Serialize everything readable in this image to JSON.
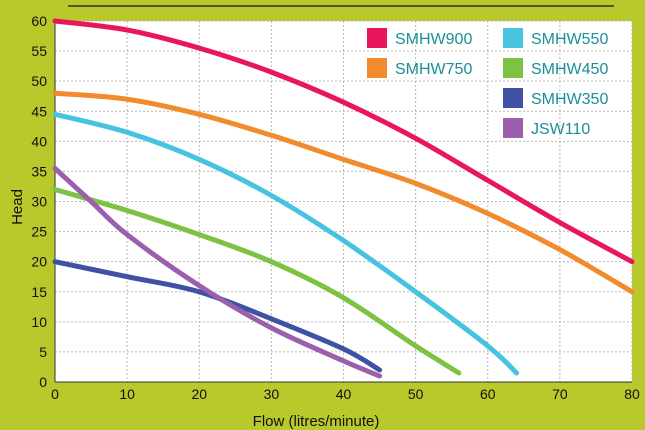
{
  "chart_data": {
    "type": "line",
    "title": "",
    "xlabel": "Flow (litres/minute)",
    "ylabel": "Head",
    "xlim": [
      0,
      80
    ],
    "ylim": [
      0,
      60
    ],
    "x_ticks": [
      0,
      10,
      20,
      30,
      40,
      50,
      60,
      70,
      80
    ],
    "y_ticks": [
      0,
      5,
      10,
      15,
      20,
      25,
      30,
      35,
      40,
      45,
      50,
      55,
      60
    ],
    "grid": true,
    "legend_position": "top-right",
    "series": [
      {
        "name": "SMHW900",
        "color": "#e8175d",
        "points": [
          [
            0,
            60
          ],
          [
            10,
            58.5
          ],
          [
            20,
            55.5
          ],
          [
            30,
            51.5
          ],
          [
            40,
            46.5
          ],
          [
            50,
            40.5
          ],
          [
            60,
            33.5
          ],
          [
            70,
            26.5
          ],
          [
            80,
            20
          ]
        ]
      },
      {
        "name": "SMHW550",
        "color": "#47c3e0",
        "points": [
          [
            0,
            44.5
          ],
          [
            10,
            41.5
          ],
          [
            20,
            37
          ],
          [
            30,
            31
          ],
          [
            40,
            23.5
          ],
          [
            50,
            15
          ],
          [
            60,
            6
          ],
          [
            64,
            1.5
          ]
        ]
      },
      {
        "name": "SMHW750",
        "color": "#f28a2e",
        "points": [
          [
            0,
            48
          ],
          [
            10,
            47
          ],
          [
            20,
            44.5
          ],
          [
            30,
            41
          ],
          [
            40,
            37
          ],
          [
            50,
            33
          ],
          [
            60,
            28
          ],
          [
            70,
            22
          ],
          [
            80,
            15
          ]
        ]
      },
      {
        "name": "SMHW450",
        "color": "#7dc242",
        "points": [
          [
            0,
            32
          ],
          [
            10,
            28.5
          ],
          [
            20,
            24.5
          ],
          [
            30,
            20
          ],
          [
            40,
            14
          ],
          [
            50,
            6
          ],
          [
            56,
            1.5
          ]
        ]
      },
      {
        "name": "SMHW350",
        "color": "#3f51a3",
        "points": [
          [
            0,
            20
          ],
          [
            10,
            17.5
          ],
          [
            20,
            15
          ],
          [
            30,
            10.5
          ],
          [
            40,
            5.5
          ],
          [
            45,
            2
          ]
        ]
      },
      {
        "name": "JSW110",
        "color": "#9c5fae",
        "points": [
          [
            0,
            35.5
          ],
          [
            5,
            30
          ],
          [
            10,
            24.5
          ],
          [
            20,
            16
          ],
          [
            30,
            9
          ],
          [
            40,
            3.5
          ],
          [
            45,
            1
          ]
        ]
      }
    ]
  }
}
